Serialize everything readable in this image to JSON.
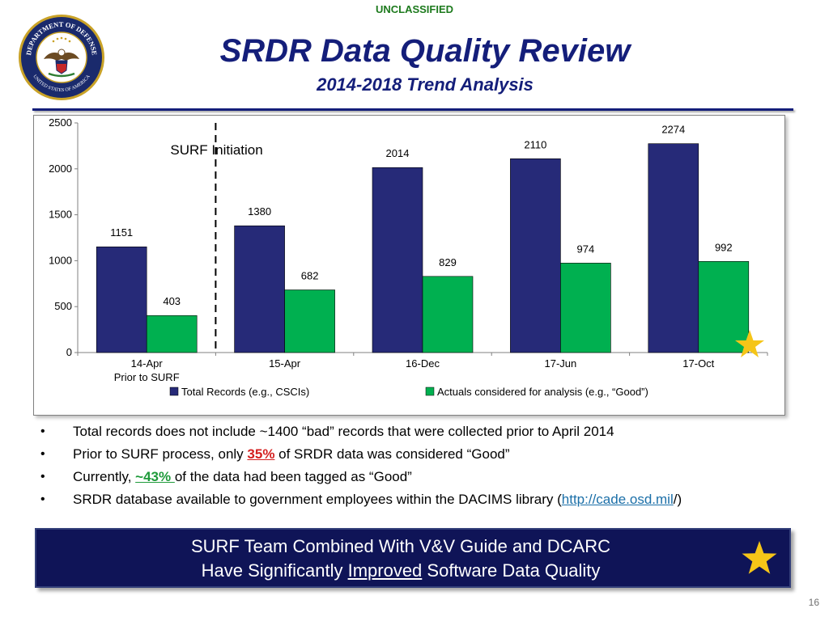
{
  "header": {
    "classification": "UNCLASSIFIED",
    "title": "SRDR Data Quality Review",
    "subtitle": "2014-2018 Trend Analysis",
    "seal": {
      "icon": "department-of-defense-seal",
      "text_top": "DEPARTMENT OF DEFENSE",
      "text_bottom": "UNITED STATES OF AMERICA"
    }
  },
  "chart_data": {
    "type": "bar",
    "categories": [
      "14-Apr",
      "15-Apr",
      "16-Dec",
      "17-Jun",
      "17-Oct"
    ],
    "category_sublabels": [
      "Prior to SURF",
      "",
      "",
      "",
      ""
    ],
    "series": [
      {
        "name": "Total Records (e.g., CSCIs)",
        "color": "#262a78",
        "values": [
          1151,
          1380,
          2014,
          2110,
          2274
        ]
      },
      {
        "name": "Actuals considered for analysis (e.g., “Good”)",
        "color": "#00b050",
        "values": [
          403,
          682,
          829,
          974,
          992
        ]
      }
    ],
    "ylim": [
      0,
      2500
    ],
    "yticks": [
      0,
      500,
      1000,
      1500,
      2000,
      2500
    ],
    "annotation": {
      "text": "SURF Initiation",
      "marker": "dashed-vertical-line-between-14-Apr-and-15-Apr"
    },
    "legend_position": "bottom",
    "grid": false,
    "highlight": {
      "icon": "gold-star-icon",
      "category": "17-Oct"
    }
  },
  "bullets": [
    {
      "text": "Total records does not include ~1400 “bad” records that were collected prior to April 2014"
    },
    {
      "before": "Prior to SURF process, only ",
      "highlight": "35%",
      "after": " of SRDR data was considered “Good”"
    },
    {
      "before": "Currently, ",
      "highlight": "~43% ",
      "after": "of the data had been tagged as “Good”"
    },
    {
      "before": "SRDR database available to government employees within the DACIMS library (",
      "link": "http://cade.osd.mil",
      "after": "/)"
    }
  ],
  "banner": {
    "line1": "SURF Team Combined With V&V Guide and DCARC",
    "line2_before": "Have Significantly ",
    "line2_emphasis": "Improved",
    "line2_after": " Software Data Quality",
    "icon": "gold-star-icon"
  },
  "footer": {
    "page_number": "16"
  },
  "colors": {
    "title": "#141e7a",
    "classification": "#1d7a1d",
    "banner_bg": "#0f1457",
    "star": "#f5c518"
  }
}
